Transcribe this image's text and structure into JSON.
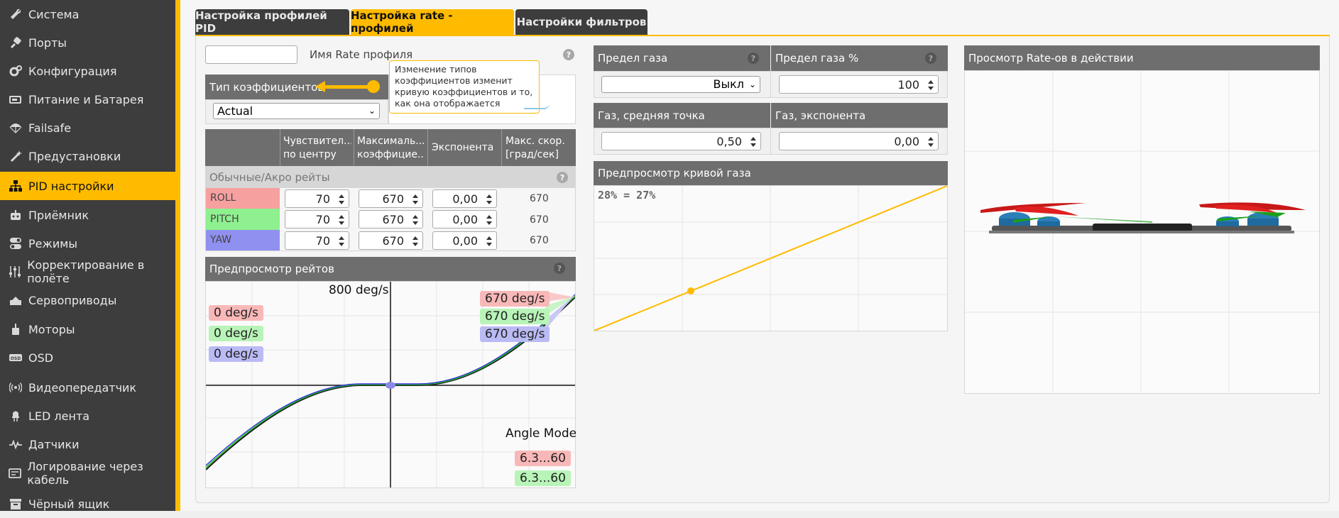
{
  "sidebar": {
    "items": [
      {
        "label": "Система",
        "icon": "wrench-icon"
      },
      {
        "label": "Порты",
        "icon": "plug-icon"
      },
      {
        "label": "Конфигурация",
        "icon": "gears-icon"
      },
      {
        "label": "Питание и Батарея",
        "icon": "battery-icon"
      },
      {
        "label": "Failsafe",
        "icon": "parachute-icon"
      },
      {
        "label": "Предустановки",
        "icon": "magic-wand-icon"
      },
      {
        "label": "PID настройки",
        "icon": "sitemap-icon",
        "active": true
      },
      {
        "label": "Приёмник",
        "icon": "robot-icon"
      },
      {
        "label": "Режимы",
        "icon": "toggle-icon"
      },
      {
        "label": "Корректирование в полёте",
        "icon": "sliders-icon"
      },
      {
        "label": "Сервоприводы",
        "icon": "servo-icon"
      },
      {
        "label": "Моторы",
        "icon": "motor-icon"
      },
      {
        "label": "OSD",
        "icon": "osd-icon"
      },
      {
        "label": "Видеопередатчик",
        "icon": "broadcast-icon"
      },
      {
        "label": "LED лента",
        "icon": "led-icon"
      },
      {
        "label": "Датчики",
        "icon": "pulse-icon"
      },
      {
        "label": "Логирование через кабель",
        "icon": "cable-icon"
      },
      {
        "label": "Чёрный ящик",
        "icon": "archive-icon"
      }
    ]
  },
  "tabs": [
    {
      "label": "Настройка профилей PID",
      "active": false
    },
    {
      "label": "Настройка rate - профилей",
      "active": true
    },
    {
      "label": "Настройки фильтров",
      "active": false
    }
  ],
  "profile": {
    "name_value": "",
    "name_label": "Имя Rate профиля"
  },
  "rates_type": {
    "header": "Тип коэффициентов",
    "selected": "Actual"
  },
  "tooltip": {
    "text": "Изменение типов коэффициентов изменит кривую коэффициентов и то, как она отображается"
  },
  "rates_table": {
    "headers": [
      "Чувствител... по центру",
      "Максималь... коэффицие...",
      "Экспонента",
      "Макс. скор. [град/сек]"
    ],
    "group_label": "Обычные/Акро рейты",
    "rows": [
      {
        "axis": "ROLL",
        "center": "70",
        "max": "670",
        "expo": "0,00",
        "maxvel": "670",
        "color": "#f7a0a0"
      },
      {
        "axis": "PITCH",
        "center": "70",
        "max": "670",
        "expo": "0,00",
        "maxvel": "670",
        "color": "#8ff08f"
      },
      {
        "axis": "YAW",
        "center": "70",
        "max": "670",
        "expo": "0,00",
        "maxvel": "670",
        "color": "#9090f0"
      }
    ]
  },
  "rates_preview": {
    "header": "Предпросмотр рейтов",
    "top_label": "800 deg/s",
    "current_labels": [
      "0 deg/s",
      "0 deg/s",
      "0 deg/s"
    ],
    "max_labels": [
      "670 deg/s",
      "670 deg/s",
      "670 deg/s"
    ],
    "angle_mode_label": "Angle Mode",
    "angle_labels": [
      "6.3...60",
      "6.3...60"
    ]
  },
  "throttle": {
    "limit_header": "Предел газа",
    "limit_value": "Выкл",
    "limit_pct_header": "Предел газа %",
    "limit_pct_value": "100",
    "mid_header": "Газ, средняя точка",
    "mid_value": "0,50",
    "expo_header": "Газ, экспонента",
    "expo_value": "0,00",
    "preview_header": "Предпросмотр кривой газа",
    "preview_readout": "28% = 27%"
  },
  "model_preview": {
    "header": "Просмотр Rate-ов в действии"
  },
  "colors": {
    "accent": "#ffbb00",
    "sidebar": "#3d3d3d",
    "header": "#6e6e6e",
    "roll": "#f7a0a0",
    "pitch": "#8ff08f",
    "yaw": "#9090f0"
  }
}
